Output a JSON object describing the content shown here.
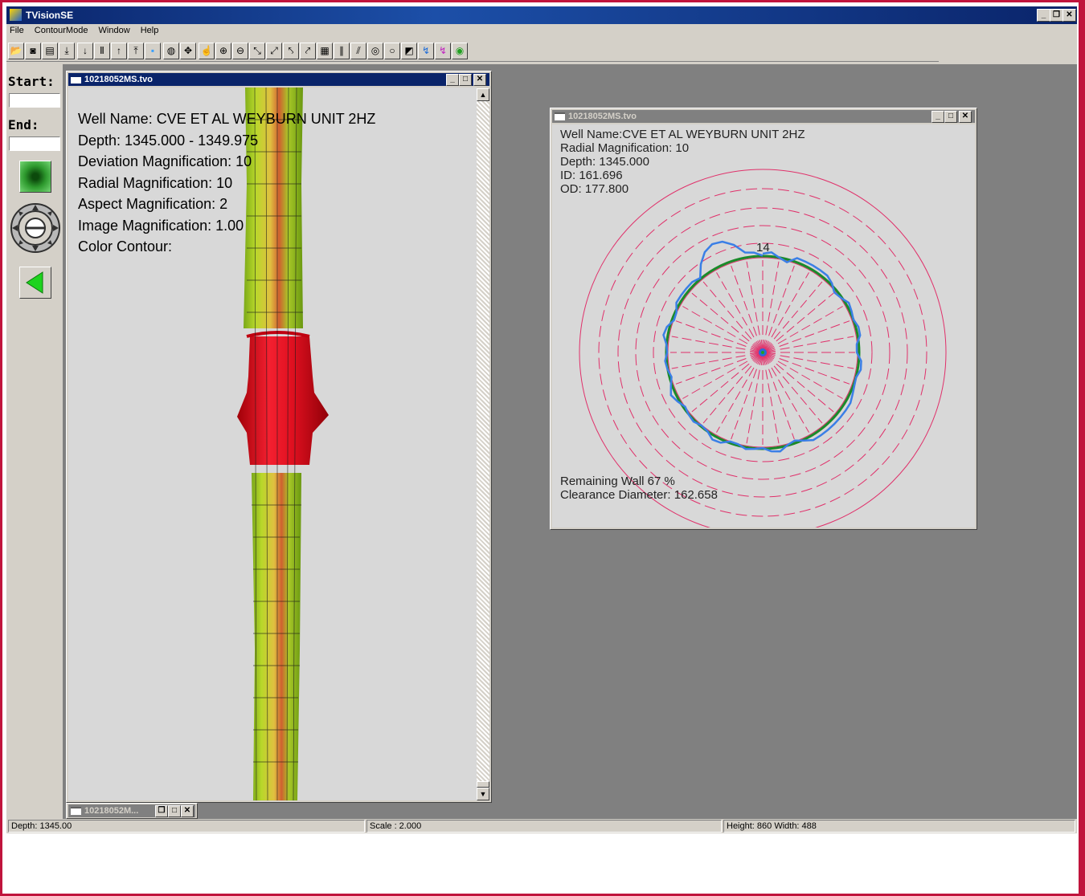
{
  "app": {
    "title": "TVisionSE"
  },
  "menu": {
    "file": "File",
    "contour_mode": "ContourMode",
    "window": "Window",
    "help": "Help"
  },
  "controls": {
    "start_label": "Start:",
    "end_label": "End:",
    "start_value": "",
    "end_value": ""
  },
  "window3d": {
    "title": "10218052MS.tvo",
    "well_name": "Well Name: CVE ET AL WEYBURN UNIT 2HZ",
    "depth": "Depth: 1345.000 - 1349.975",
    "deviation_mag": "Deviation Magnification:  10",
    "radial_mag": "Radial Magnification:  10",
    "aspect_mag": "Aspect Magnification:  2",
    "image_mag": "Image Magnification: 1.00",
    "color_contour": "Color Contour:"
  },
  "polar_window": {
    "title": "10218052MS.tvo",
    "well_name": "Well Name:CVE ET AL WEYBURN UNIT 2HZ",
    "radial_mag": "Radial Magnification:  10",
    "depth": "Depth: 1345.000",
    "id": "ID: 161.696",
    "od": "OD: 177.800",
    "sensor_label": "14",
    "remaining_wall": "Remaining Wall  67 %",
    "clearance": "Clearance Diameter: 162.658"
  },
  "minimized_window": {
    "title": "10218052M..."
  },
  "status": {
    "depth": "Depth: 1345.00",
    "scale": "Scale : 2.000",
    "size": "Height: 860 Width: 488"
  },
  "colors": {
    "frame": "#c0143c",
    "mdi_bg": "#808080",
    "polar_grid": "#e0306a",
    "trace_blue": "#3a7fe6",
    "trace_green": "#1a8a2a"
  },
  "toolbar_icons": [
    "open-icon",
    "camera-icon",
    "film-icon",
    "first-icon",
    "down-icon",
    "pause-icon",
    "up-icon",
    "last-icon",
    "select-icon",
    "sphere-icon",
    "move-icon",
    "hand-icon",
    "zoom-in-icon",
    "zoom-out-icon",
    "rotate-x-icon",
    "rotate-y-icon",
    "rotate-z-icon",
    "reset-icon",
    "grid-icon",
    "fingers-icon",
    "slices-icon",
    "target-icon",
    "circle-icon",
    "flag-icon",
    "contour1-icon",
    "contour2-icon",
    "bullseye-icon"
  ]
}
